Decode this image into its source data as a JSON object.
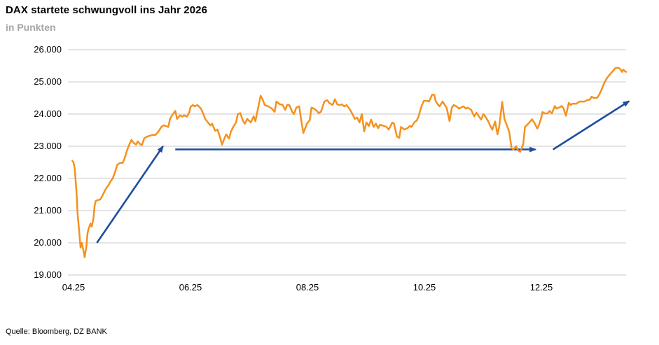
{
  "header": {
    "title": "DAX startete schwungvoll ins Jahr 2026",
    "subtitle": "in Punkten"
  },
  "footer": {
    "source": "Quelle: Bloomberg, DZ BANK"
  },
  "colors": {
    "series_orange": "#F5911E",
    "arrow_blue": "#1F4E9C",
    "gridline": "#C8C8C8",
    "subtitle_gray": "#A6A6A6",
    "text": "#000000"
  },
  "chart_data": {
    "type": "line",
    "title": "DAX startete schwungvoll ins Jahr 2026",
    "subtitle": "in Punkten",
    "xlabel": "",
    "ylabel": "in Punkten",
    "grid": "horizontal",
    "legend_position": "none",
    "x_axis": {
      "unit": "month (4 = Apr 2025, 13 = Jan 2026)",
      "range": [
        3.9,
        13.55
      ],
      "ticks": [
        4,
        6,
        8,
        10,
        12
      ],
      "tick_labels": [
        "04.25",
        "06.25",
        "08.25",
        "10.25",
        "12.25"
      ]
    },
    "y_axis": {
      "unit": "DAX index points",
      "range": [
        19000,
        26000
      ],
      "ticks": [
        26000,
        25000,
        24000,
        23000,
        22000,
        21000,
        20000,
        19000
      ],
      "tick_labels": [
        "26.000",
        "25.000",
        "24.000",
        "23.000",
        "22.000",
        "21.000",
        "20.000",
        "19.000"
      ]
    },
    "series": [
      {
        "name": "DAX",
        "points": [
          [
            3.98,
            22550
          ],
          [
            4.0,
            22500
          ],
          [
            4.02,
            22300
          ],
          [
            4.05,
            21600
          ],
          [
            4.07,
            20900
          ],
          [
            4.1,
            20300
          ],
          [
            4.12,
            19850
          ],
          [
            4.14,
            20000
          ],
          [
            4.17,
            19750
          ],
          [
            4.19,
            19550
          ],
          [
            4.22,
            19900
          ],
          [
            4.24,
            20300
          ],
          [
            4.26,
            20450
          ],
          [
            4.29,
            20600
          ],
          [
            4.31,
            20500
          ],
          [
            4.34,
            20750
          ],
          [
            4.36,
            21150
          ],
          [
            4.38,
            21300
          ],
          [
            4.42,
            21330
          ],
          [
            4.46,
            21350
          ],
          [
            4.49,
            21450
          ],
          [
            4.53,
            21600
          ],
          [
            4.56,
            21700
          ],
          [
            4.6,
            21800
          ],
          [
            4.63,
            21900
          ],
          [
            4.67,
            22000
          ],
          [
            4.71,
            22200
          ],
          [
            4.75,
            22430
          ],
          [
            4.8,
            22480
          ],
          [
            4.84,
            22480
          ],
          [
            4.87,
            22600
          ],
          [
            4.92,
            22900
          ],
          [
            4.96,
            23080
          ],
          [
            4.99,
            23200
          ],
          [
            5.03,
            23100
          ],
          [
            5.07,
            23050
          ],
          [
            5.1,
            23150
          ],
          [
            5.14,
            23060
          ],
          [
            5.17,
            23040
          ],
          [
            5.21,
            23250
          ],
          [
            5.26,
            23300
          ],
          [
            5.31,
            23330
          ],
          [
            5.35,
            23350
          ],
          [
            5.4,
            23350
          ],
          [
            5.45,
            23450
          ],
          [
            5.5,
            23600
          ],
          [
            5.54,
            23650
          ],
          [
            5.59,
            23620
          ],
          [
            5.62,
            23600
          ],
          [
            5.65,
            23850
          ],
          [
            5.7,
            24000
          ],
          [
            5.74,
            24100
          ],
          [
            5.77,
            23850
          ],
          [
            5.82,
            23960
          ],
          [
            5.86,
            23920
          ],
          [
            5.89,
            23960
          ],
          [
            5.94,
            23920
          ],
          [
            5.98,
            24050
          ],
          [
            6.0,
            24220
          ],
          [
            6.04,
            24280
          ],
          [
            6.07,
            24240
          ],
          [
            6.12,
            24280
          ],
          [
            6.18,
            24170
          ],
          [
            6.22,
            24000
          ],
          [
            6.25,
            23850
          ],
          [
            6.3,
            23740
          ],
          [
            6.34,
            23650
          ],
          [
            6.37,
            23700
          ],
          [
            6.42,
            23480
          ],
          [
            6.46,
            23520
          ],
          [
            6.49,
            23370
          ],
          [
            6.54,
            23050
          ],
          [
            6.57,
            23200
          ],
          [
            6.61,
            23370
          ],
          [
            6.66,
            23240
          ],
          [
            6.69,
            23450
          ],
          [
            6.73,
            23600
          ],
          [
            6.78,
            23740
          ],
          [
            6.81,
            24000
          ],
          [
            6.85,
            24030
          ],
          [
            6.9,
            23780
          ],
          [
            6.93,
            23700
          ],
          [
            6.97,
            23850
          ],
          [
            7.03,
            23740
          ],
          [
            7.08,
            23930
          ],
          [
            7.11,
            23780
          ],
          [
            7.15,
            24130
          ],
          [
            7.2,
            24570
          ],
          [
            7.23,
            24470
          ],
          [
            7.27,
            24280
          ],
          [
            7.33,
            24240
          ],
          [
            7.39,
            24170
          ],
          [
            7.44,
            24070
          ],
          [
            7.47,
            24390
          ],
          [
            7.53,
            24300
          ],
          [
            7.57,
            24300
          ],
          [
            7.62,
            24130
          ],
          [
            7.65,
            24280
          ],
          [
            7.69,
            24280
          ],
          [
            7.74,
            24070
          ],
          [
            7.77,
            24000
          ],
          [
            7.81,
            24200
          ],
          [
            7.86,
            24240
          ],
          [
            7.89,
            23850
          ],
          [
            7.93,
            23410
          ],
          [
            7.99,
            23700
          ],
          [
            8.04,
            23810
          ],
          [
            8.07,
            24200
          ],
          [
            8.11,
            24170
          ],
          [
            8.16,
            24100
          ],
          [
            8.19,
            24030
          ],
          [
            8.23,
            24070
          ],
          [
            8.29,
            24390
          ],
          [
            8.34,
            24430
          ],
          [
            8.37,
            24350
          ],
          [
            8.43,
            24280
          ],
          [
            8.47,
            24460
          ],
          [
            8.51,
            24300
          ],
          [
            8.55,
            24280
          ],
          [
            8.59,
            24300
          ],
          [
            8.63,
            24240
          ],
          [
            8.67,
            24280
          ],
          [
            8.73,
            24130
          ],
          [
            8.77,
            24000
          ],
          [
            8.81,
            23850
          ],
          [
            8.85,
            23890
          ],
          [
            8.89,
            23740
          ],
          [
            8.93,
            24000
          ],
          [
            8.97,
            23460
          ],
          [
            9.01,
            23740
          ],
          [
            9.05,
            23630
          ],
          [
            9.09,
            23830
          ],
          [
            9.13,
            23600
          ],
          [
            9.17,
            23700
          ],
          [
            9.21,
            23560
          ],
          [
            9.24,
            23670
          ],
          [
            9.31,
            23630
          ],
          [
            9.35,
            23600
          ],
          [
            9.39,
            23520
          ],
          [
            9.45,
            23740
          ],
          [
            9.48,
            23700
          ],
          [
            9.53,
            23300
          ],
          [
            9.57,
            23260
          ],
          [
            9.6,
            23600
          ],
          [
            9.66,
            23520
          ],
          [
            9.71,
            23560
          ],
          [
            9.75,
            23630
          ],
          [
            9.78,
            23600
          ],
          [
            9.83,
            23750
          ],
          [
            9.87,
            23800
          ],
          [
            9.9,
            23930
          ],
          [
            9.95,
            24240
          ],
          [
            9.99,
            24410
          ],
          [
            10.05,
            24410
          ],
          [
            10.08,
            24390
          ],
          [
            10.13,
            24600
          ],
          [
            10.17,
            24600
          ],
          [
            10.19,
            24410
          ],
          [
            10.23,
            24300
          ],
          [
            10.26,
            24240
          ],
          [
            10.31,
            24390
          ],
          [
            10.35,
            24280
          ],
          [
            10.38,
            24200
          ],
          [
            10.43,
            23780
          ],
          [
            10.47,
            24200
          ],
          [
            10.5,
            24280
          ],
          [
            10.55,
            24240
          ],
          [
            10.59,
            24170
          ],
          [
            10.62,
            24200
          ],
          [
            10.67,
            24240
          ],
          [
            10.71,
            24170
          ],
          [
            10.74,
            24200
          ],
          [
            10.8,
            24130
          ],
          [
            10.85,
            23930
          ],
          [
            10.89,
            24040
          ],
          [
            10.92,
            23960
          ],
          [
            10.97,
            23830
          ],
          [
            11.01,
            24000
          ],
          [
            11.04,
            23930
          ],
          [
            11.09,
            23780
          ],
          [
            11.13,
            23620
          ],
          [
            11.16,
            23510
          ],
          [
            11.21,
            23770
          ],
          [
            11.25,
            23370
          ],
          [
            11.28,
            23620
          ],
          [
            11.33,
            24380
          ],
          [
            11.37,
            23840
          ],
          [
            11.4,
            23700
          ],
          [
            11.45,
            23450
          ],
          [
            11.49,
            22950
          ],
          [
            11.52,
            22900
          ],
          [
            11.57,
            23000
          ],
          [
            11.6,
            22870
          ],
          [
            11.64,
            22830
          ],
          [
            11.69,
            23060
          ],
          [
            11.72,
            23600
          ],
          [
            11.76,
            23670
          ],
          [
            11.81,
            23770
          ],
          [
            11.84,
            23840
          ],
          [
            11.88,
            23730
          ],
          [
            11.93,
            23550
          ],
          [
            11.96,
            23670
          ],
          [
            11.99,
            23840
          ],
          [
            12.02,
            24060
          ],
          [
            12.06,
            24020
          ],
          [
            12.11,
            24020
          ],
          [
            12.14,
            24100
          ],
          [
            12.18,
            24020
          ],
          [
            12.23,
            24250
          ],
          [
            12.26,
            24170
          ],
          [
            12.3,
            24200
          ],
          [
            12.35,
            24250
          ],
          [
            12.38,
            24170
          ],
          [
            12.42,
            23950
          ],
          [
            12.47,
            24350
          ],
          [
            12.5,
            24280
          ],
          [
            12.53,
            24320
          ],
          [
            12.56,
            24320
          ],
          [
            12.6,
            24320
          ],
          [
            12.65,
            24390
          ],
          [
            12.71,
            24390
          ],
          [
            12.74,
            24390
          ],
          [
            12.78,
            24430
          ],
          [
            12.83,
            24450
          ],
          [
            12.86,
            24540
          ],
          [
            12.9,
            24500
          ],
          [
            12.95,
            24500
          ],
          [
            12.98,
            24570
          ],
          [
            13.02,
            24720
          ],
          [
            13.07,
            24940
          ],
          [
            13.1,
            25050
          ],
          [
            13.14,
            25160
          ],
          [
            13.19,
            25270
          ],
          [
            13.22,
            25330
          ],
          [
            13.26,
            25420
          ],
          [
            13.3,
            25440
          ],
          [
            13.34,
            25420
          ],
          [
            13.38,
            25310
          ],
          [
            13.4,
            25380
          ],
          [
            13.43,
            25330
          ],
          [
            13.45,
            25310
          ]
        ]
      }
    ],
    "annotations": {
      "arrows": [
        {
          "name": "trend-arrow-spring-rally",
          "from": [
            4.4,
            20000
          ],
          "to": [
            5.53,
            23000
          ]
        },
        {
          "name": "trend-arrow-sideways",
          "from": [
            5.74,
            22900
          ],
          "to": [
            11.9,
            22900
          ]
        },
        {
          "name": "trend-arrow-yearend-rally",
          "from": [
            12.2,
            22900
          ],
          "to": [
            13.5,
            24400
          ]
        }
      ]
    }
  }
}
